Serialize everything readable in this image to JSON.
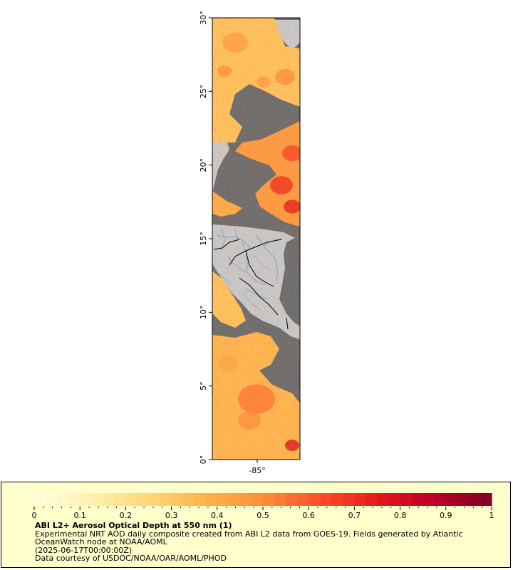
{
  "map": {
    "lat_ticks": [
      "0°",
      "5°",
      "10°",
      "15°",
      "20°",
      "25°",
      "30°"
    ],
    "lon_tick": "-85°",
    "colors": {
      "land": "#c8c8c8",
      "no_data": "#6e6e6e",
      "rivers": "#6a9fd4",
      "borders": "#000000"
    }
  },
  "legend": {
    "ticks": [
      "0",
      "0.1",
      "0.2",
      "0.3",
      "0.4",
      "0.5",
      "0.6",
      "0.7",
      "0.8",
      "0.9",
      "1"
    ],
    "title": "ABI L2+ Aerosol Optical Depth at 550 nm (1)",
    "line1": "Experimental NRT AOD daily composite created from ABI L2 data from GOES-19. Fields generated by Atlantic OceanWatch node at NOAA/AOML",
    "line2": "(2025-06-17T00:00:00Z)",
    "line3": "Data courtesy of USDOC/NOAA/OAR/AOML/PHOD",
    "colormap": [
      "#ffffe0",
      "#fff0b0",
      "#ffd678",
      "#feb24c",
      "#fd8d3c",
      "#fc4e2a",
      "#e31a1c",
      "#bd0026",
      "#800026"
    ]
  }
}
